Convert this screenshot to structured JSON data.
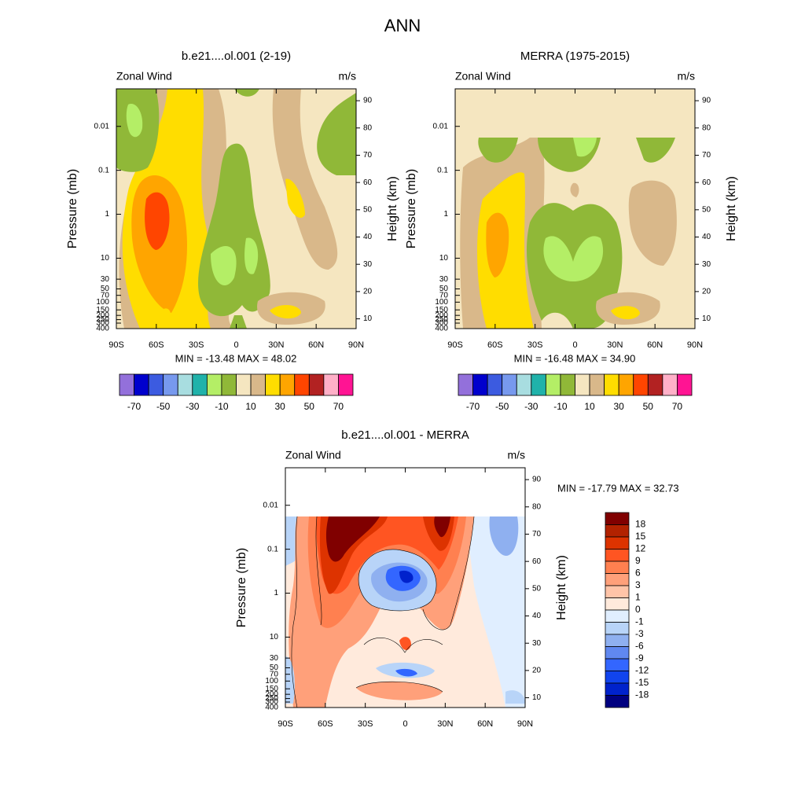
{
  "page_title": "ANN",
  "chart_data": [
    {
      "type": "contour",
      "title": "b.e21....ol.001 (2-19)",
      "left_label": "Zonal Wind",
      "right_label": "m/s",
      "ylabel": "Pressure (mb)",
      "y2label": "Height (km)",
      "xlim": [
        -90,
        90
      ],
      "xticks": [
        {
          "value": -90,
          "label": "90S"
        },
        {
          "value": -60,
          "label": "60S"
        },
        {
          "value": -30,
          "label": "30S"
        },
        0,
        {
          "value": 30,
          "label": "30N"
        },
        {
          "value": 60,
          "label": "60N"
        },
        {
          "value": 90,
          "label": "90N"
        }
      ],
      "ylog": true,
      "ylim": [
        400,
        0.0014
      ],
      "yticks": [
        0.01,
        0.1,
        1,
        10,
        30,
        50,
        70,
        100,
        150,
        200,
        250,
        300,
        400
      ],
      "y2ticks": [
        10,
        20,
        30,
        40,
        50,
        60,
        70,
        80,
        90
      ],
      "stats": "MIN = -13.48  MAX =  48.02",
      "colorbar": {
        "orientation": "horizontal",
        "lim": [
          -80,
          80
        ],
        "colors": [
          "#9370db",
          "#0000cd",
          "#3c5be0",
          "#7799ee",
          "#a8dde0",
          "#20b2aa",
          "#b4ee66",
          "#90b838",
          "#f5e6c0",
          "#d9b88a",
          "#ffdd00",
          "#ffa500",
          "#ff4500",
          "#b22222",
          "#ffb0c8",
          "#ff1493"
        ],
        "ticks": [
          -70,
          -50,
          -30,
          -10,
          10,
          30,
          50,
          70
        ]
      }
    },
    {
      "type": "contour",
      "title": "MERRA (1975-2015)",
      "left_label": "Zonal Wind",
      "right_label": "m/s",
      "ylabel": "Pressure (mb)",
      "y2label": "Height (km)",
      "xlim": [
        -90,
        90
      ],
      "xticks": [
        {
          "value": -90,
          "label": "90S"
        },
        {
          "value": -60,
          "label": "60S"
        },
        {
          "value": -30,
          "label": "30S"
        },
        0,
        {
          "value": 30,
          "label": "30N"
        },
        {
          "value": 60,
          "label": "60N"
        },
        {
          "value": 90,
          "label": "90N"
        }
      ],
      "ylog": true,
      "ylim": [
        400,
        0.0014
      ],
      "yticks": [
        0.01,
        0.1,
        1,
        10,
        30,
        50,
        70,
        100,
        150,
        200,
        250,
        300,
        400
      ],
      "y2ticks": [
        10,
        20,
        30,
        40,
        50,
        60,
        70,
        80,
        90
      ],
      "stats": "MIN = -16.48  MAX =  34.90",
      "colorbar": {
        "orientation": "horizontal",
        "lim": [
          -80,
          80
        ],
        "colors": [
          "#9370db",
          "#0000cd",
          "#3c5be0",
          "#7799ee",
          "#a8dde0",
          "#20b2aa",
          "#b4ee66",
          "#90b838",
          "#f5e6c0",
          "#d9b88a",
          "#ffdd00",
          "#ffa500",
          "#ff4500",
          "#b22222",
          "#ffb0c8",
          "#ff1493"
        ],
        "ticks": [
          -70,
          -50,
          -30,
          -10,
          10,
          30,
          50,
          70
        ]
      }
    },
    {
      "type": "contour",
      "title": "b.e21....ol.001 - MERRA",
      "left_label": "Zonal Wind",
      "right_label": "m/s",
      "ylabel": "Pressure (mb)",
      "y2label": "Height (km)",
      "xlim": [
        -90,
        90
      ],
      "xticks": [
        {
          "value": -90,
          "label": "90S"
        },
        {
          "value": -60,
          "label": "60S"
        },
        {
          "value": -30,
          "label": "30S"
        },
        0,
        {
          "value": 30,
          "label": "30N"
        },
        {
          "value": 60,
          "label": "60N"
        },
        {
          "value": 90,
          "label": "90N"
        }
      ],
      "ylog": true,
      "ylim": [
        400,
        0.0014
      ],
      "yticks": [
        0.01,
        0.1,
        1,
        10,
        30,
        50,
        70,
        100,
        150,
        200,
        250,
        300,
        400
      ],
      "y2ticks": [
        10,
        20,
        30,
        40,
        50,
        60,
        70,
        80,
        90
      ],
      "stats": "MIN = -17.79  MAX =  32.73",
      "colorbar": {
        "orientation": "vertical",
        "colors": [
          "#800000",
          "#b22200",
          "#dd3300",
          "#ff5522",
          "#ff8050",
          "#ffa07a",
          "#ffc4a8",
          "#ffeadc",
          "#e0eeff",
          "#b8d4f8",
          "#8fb0f0",
          "#6088f0",
          "#3366ff",
          "#1144ee",
          "#0022cc",
          "#000080"
        ],
        "ticks": [
          18,
          15,
          12,
          9,
          6,
          3,
          1,
          0,
          -1,
          -3,
          -6,
          -9,
          -12,
          -15,
          -18
        ]
      }
    }
  ]
}
